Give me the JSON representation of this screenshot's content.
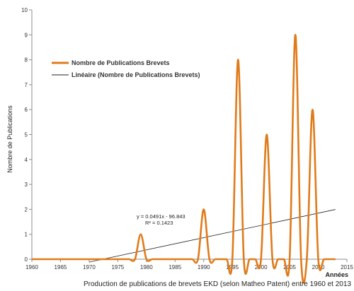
{
  "chart_data": {
    "type": "line",
    "title": "",
    "xlabel": "Années",
    "ylabel": "Nombre de Publications",
    "caption": "Production de publications de brevets EKD (selon Matheo Patent) entre 1960 et 2013",
    "xlim": [
      1960,
      2015
    ],
    "ylim": [
      0,
      10
    ],
    "x_ticks": [
      1960,
      1965,
      1970,
      1975,
      1980,
      1985,
      1990,
      1995,
      2000,
      2005,
      2010,
      2015
    ],
    "y_ticks": [
      0,
      1,
      2,
      3,
      4,
      5,
      6,
      7,
      8,
      9,
      10
    ],
    "grid": false,
    "legend_position": "upper-left",
    "x": [
      1960,
      1961,
      1962,
      1963,
      1964,
      1965,
      1966,
      1967,
      1968,
      1969,
      1970,
      1971,
      1972,
      1973,
      1974,
      1975,
      1976,
      1977,
      1978,
      1979,
      1980,
      1981,
      1982,
      1983,
      1984,
      1985,
      1986,
      1987,
      1988,
      1989,
      1990,
      1991,
      1992,
      1993,
      1994,
      1995,
      1996,
      1997,
      1998,
      1999,
      2000,
      2001,
      2002,
      2003,
      2004,
      2005,
      2006,
      2007,
      2008,
      2009,
      2010,
      2011,
      2012,
      2013
    ],
    "series": [
      {
        "name": "Nombre de Publications Brevets",
        "color": "#E07B1A",
        "style": "smooth-line",
        "values": [
          0,
          0,
          0,
          0,
          0,
          0,
          0,
          0,
          0,
          0,
          0,
          0,
          0,
          0,
          0,
          0,
          0,
          0,
          0,
          1,
          0,
          0,
          0,
          0,
          0,
          0,
          0,
          0,
          0,
          0,
          2,
          0,
          0,
          0,
          0,
          0,
          8,
          0,
          0,
          0,
          0,
          5,
          0,
          0,
          0,
          0,
          9,
          0,
          0,
          6,
          0,
          0,
          0,
          0
        ]
      },
      {
        "name": "Linéaire (Nombre de Publications Brevets)",
        "color": "#222222",
        "style": "trendline",
        "slope": 0.0491,
        "intercept": -96.843,
        "x_range": [
          1970,
          2013
        ]
      }
    ],
    "annotations": [
      {
        "text": "y = 0.0491x - 96.843"
      },
      {
        "text": "R² = 0.1423"
      }
    ]
  }
}
